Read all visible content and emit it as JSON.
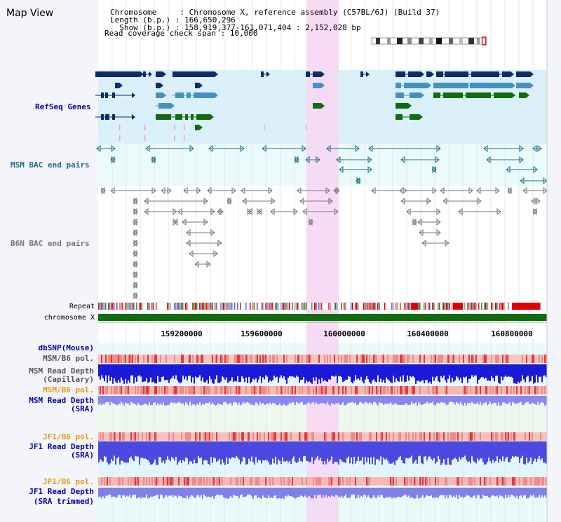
{
  "title": "Map View",
  "header": {
    "chromosome_line": "Chromosome     : Chromosome X, reference assembly (C57BL/6J) (Build 37)",
    "length_line": "Length (b.p.) : 166,650,296",
    "show_line": "  Show (b.p.) : 158,919,377-161,071,404 : 2,152,028 bp",
    "coverage_line": "Read coverage check span : 10,000"
  },
  "tracks": {
    "refseq": "RefSeq Genes",
    "msm_bac": "MSM BAC end pairs",
    "b6n_bac": "B6N BAC end pairs",
    "repeat": "Repeat",
    "chromosome": "chromosome X"
  },
  "axis": {
    "ticks": [
      "159200000",
      "159600000",
      "160000000",
      "160400000",
      "160800000"
    ]
  },
  "lower_tracks": {
    "dbsnp": "dbSNP(Mouse)",
    "msm_pol": "MSM/B6 pol.",
    "msm_depth_cap_1": "MSM Read Depth",
    "msm_depth_cap_2": "(Capillary)",
    "msm_pol2": "MSM/B6 pol.",
    "msm_depth_sra_1": "MSM Read Depth",
    "msm_depth_sra_2": "(SRA)",
    "jf1_pol": "JF1/B6 pol.",
    "jf1_depth_1": "JF1 Read Depth",
    "jf1_depth_2": "(SRA)",
    "jf1_pol2": "JF1/B6 pol.",
    "jf1_trim_1": "JF1 Read Depth",
    "jf1_trim_2": "(SRA trimmed)"
  },
  "colors": {
    "refseq_dark": "#0b2e63",
    "refseq_mid": "#4592c2",
    "refseq_green": "#0e6e0e",
    "msm_bac": "#1d6f8f",
    "b6n_bac": "#777777",
    "highlight": "#f7d6f3",
    "label_blue": "#0000aa",
    "label_orange": "#e39a12"
  }
}
